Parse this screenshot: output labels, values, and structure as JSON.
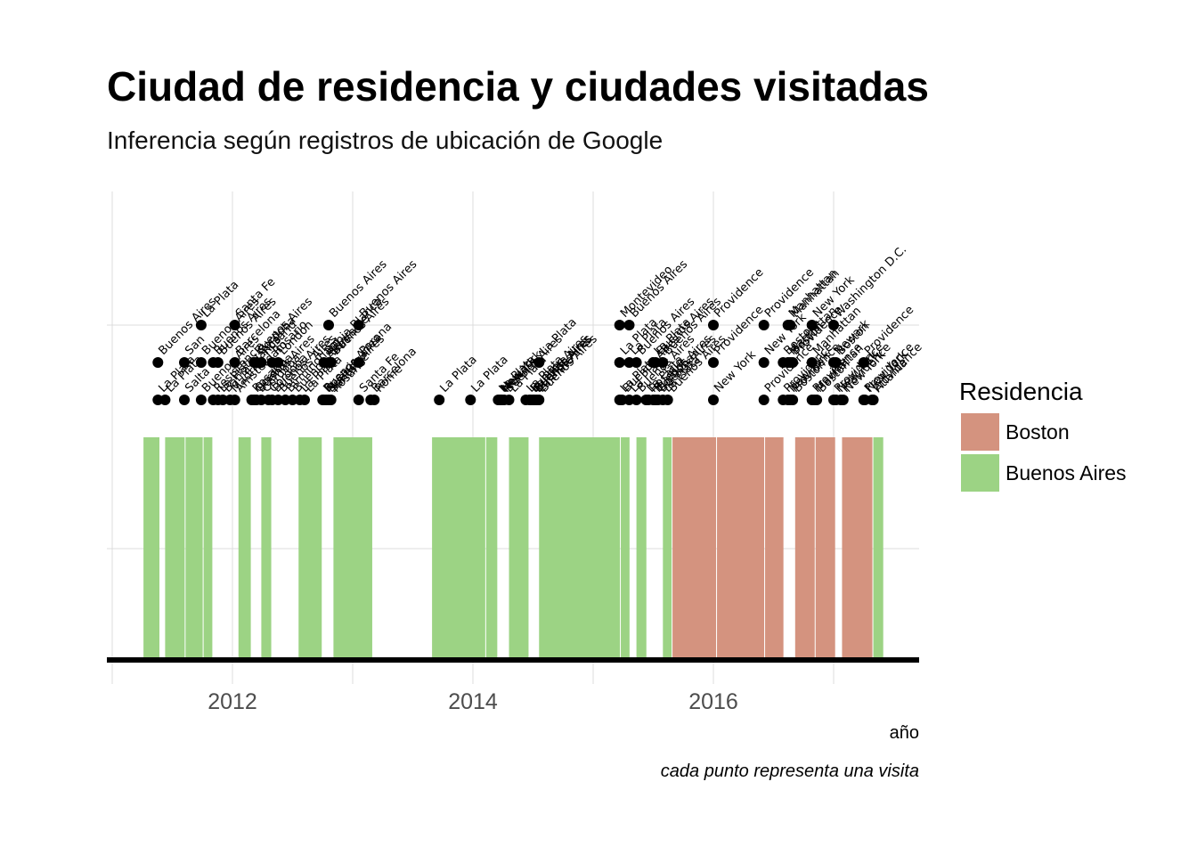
{
  "chart_data": {
    "type": "timeline",
    "title": "Ciudad de residencia y ciudades visitadas",
    "subtitle": "Inferencia según registros de ubicación de Google",
    "xlabel": "año",
    "caption": "cada punto representa una visita",
    "xlim": [
      2011.0,
      2016.7
    ],
    "x_ticks": [
      2012,
      2014,
      2016
    ],
    "grid": true,
    "legend": {
      "title": "Residencia",
      "placement": "right",
      "items": [
        {
          "name": "Boston",
          "color": "#d4937f"
        },
        {
          "name": "Buenos Aires",
          "color": "#9cd384"
        }
      ]
    },
    "residence": [
      {
        "start": 2011.26,
        "end": 2011.4,
        "city": "Buenos Aires"
      },
      {
        "start": 2011.44,
        "end": 2011.61,
        "city": "Buenos Aires"
      },
      {
        "start": 2011.61,
        "end": 2011.76,
        "city": "Buenos Aires"
      },
      {
        "start": 2011.76,
        "end": 2011.84,
        "city": "Buenos Aires"
      },
      {
        "start": 2012.05,
        "end": 2012.16,
        "city": "Buenos Aires"
      },
      {
        "start": 2012.24,
        "end": 2012.33,
        "city": "Buenos Aires"
      },
      {
        "start": 2012.55,
        "end": 2012.75,
        "city": "Buenos Aires"
      },
      {
        "start": 2012.84,
        "end": 2013.17,
        "city": "Buenos Aires"
      },
      {
        "start": 2013.66,
        "end": 2014.11,
        "city": "Buenos Aires"
      },
      {
        "start": 2014.11,
        "end": 2014.21,
        "city": "Buenos Aires"
      },
      {
        "start": 2014.3,
        "end": 2014.47,
        "city": "Buenos Aires"
      },
      {
        "start": 2014.55,
        "end": 2015.23,
        "city": "Buenos Aires"
      },
      {
        "start": 2015.23,
        "end": 2015.31,
        "city": "Buenos Aires"
      },
      {
        "start": 2015.36,
        "end": 2015.45,
        "city": "Buenos Aires"
      },
      {
        "start": 2015.58,
        "end": 2015.66,
        "city": "Buenos Aires"
      },
      {
        "start": 2015.66,
        "end": 2016.03,
        "city": "Boston"
      },
      {
        "start": 2016.03,
        "end": 2016.43,
        "city": "Boston"
      },
      {
        "start": 2016.43,
        "end": 2016.59,
        "city": "Boston"
      },
      {
        "start": 2016.68,
        "end": 2016.85,
        "city": "Boston"
      },
      {
        "start": 2016.85,
        "end": 2017.02,
        "city": "Boston"
      },
      {
        "start": 2017.07,
        "end": 2017.33,
        "city": "Boston"
      },
      {
        "start": 2017.33,
        "end": 2017.42,
        "city": "Buenos Aires"
      }
    ],
    "visits": [
      {
        "x": 2011.38,
        "city": "La Plata"
      },
      {
        "x": 2011.38,
        "city": "Buenos Aires"
      },
      {
        "x": 2011.44,
        "city": "La Plata"
      },
      {
        "x": 2011.6,
        "city": "Salta"
      },
      {
        "x": 2011.6,
        "city": "San"
      },
      {
        "x": 2011.74,
        "city": "Buenos Aires"
      },
      {
        "x": 2011.74,
        "city": "Buenos Aires"
      },
      {
        "x": 2011.74,
        "city": "La Plata"
      },
      {
        "x": 2011.84,
        "city": "Resistencia"
      },
      {
        "x": 2011.84,
        "city": "Buenos Aires"
      },
      {
        "x": 2011.88,
        "city": "La Plata"
      },
      {
        "x": 2011.88,
        "city": "Buenos Aires"
      },
      {
        "x": 2011.92,
        "city": "Bahia Blanca"
      },
      {
        "x": 2011.98,
        "city": "Madrid"
      },
      {
        "x": 2012.02,
        "city": "Amsterdam"
      },
      {
        "x": 2012.02,
        "city": "Barcelona"
      },
      {
        "x": 2012.02,
        "city": "Santa Fe"
      },
      {
        "x": 2012.16,
        "city": "Rosario"
      },
      {
        "x": 2012.18,
        "city": "Cordoba"
      },
      {
        "x": 2012.18,
        "city": "Buenos Aires"
      },
      {
        "x": 2012.2,
        "city": "Buenos Aires"
      },
      {
        "x": 2012.2,
        "city": "Cordoba"
      },
      {
        "x": 2012.24,
        "city": "Cordoba"
      },
      {
        "x": 2012.24,
        "city": "Rosario"
      },
      {
        "x": 2012.3,
        "city": "Cordoba"
      },
      {
        "x": 2012.33,
        "city": "Buenos Aires"
      },
      {
        "x": 2012.33,
        "city": "Rosario"
      },
      {
        "x": 2012.38,
        "city": "Buenos Aires"
      },
      {
        "x": 2012.38,
        "city": "London"
      },
      {
        "x": 2012.44,
        "city": "Birmingham"
      },
      {
        "x": 2012.5,
        "city": "Buenos Aires"
      },
      {
        "x": 2012.56,
        "city": "La Plata"
      },
      {
        "x": 2012.6,
        "city": "La Plata"
      },
      {
        "x": 2012.75,
        "city": "Buenos Aires"
      },
      {
        "x": 2012.76,
        "city": "Rosario"
      },
      {
        "x": 2012.76,
        "city": "Bahia Blanca"
      },
      {
        "x": 2012.78,
        "city": "Buenos Aires"
      },
      {
        "x": 2012.8,
        "city": "Santa Fe"
      },
      {
        "x": 2012.8,
        "city": "Santa Fe"
      },
      {
        "x": 2012.8,
        "city": "Buenos Aires"
      },
      {
        "x": 2012.82,
        "city": "Rosario"
      },
      {
        "x": 2012.82,
        "city": "Buenos Aires"
      },
      {
        "x": 2013.05,
        "city": "Santa Fe"
      },
      {
        "x": 2013.05,
        "city": "Parana"
      },
      {
        "x": 2013.05,
        "city": "Buenos Aires"
      },
      {
        "x": 2013.15,
        "city": "Barcelona"
      },
      {
        "x": 2013.18,
        "city": "Rome"
      },
      {
        "x": 2013.72,
        "city": "La Plata"
      },
      {
        "x": 2013.98,
        "city": "La Plata"
      },
      {
        "x": 2014.21,
        "city": "La Plata"
      },
      {
        "x": 2014.22,
        "city": "New York"
      },
      {
        "x": 2014.23,
        "city": "Newark"
      },
      {
        "x": 2014.24,
        "city": "New"
      },
      {
        "x": 2014.26,
        "city": "Buenos Aires"
      },
      {
        "x": 2014.3,
        "city": "La Plata"
      },
      {
        "x": 2014.44,
        "city": "La Plata"
      },
      {
        "x": 2014.47,
        "city": "Buenos Aires"
      },
      {
        "x": 2014.48,
        "city": "La Plata"
      },
      {
        "x": 2014.5,
        "city": "Buenos Aires"
      },
      {
        "x": 2014.51,
        "city": "Buenos Aires"
      },
      {
        "x": 2014.53,
        "city": "La Plata"
      },
      {
        "x": 2014.55,
        "city": "Buenos Aires"
      },
      {
        "x": 2014.55,
        "city": "La Plata"
      },
      {
        "x": 2015.22,
        "city": "La Plata"
      },
      {
        "x": 2015.22,
        "city": "La Plata"
      },
      {
        "x": 2015.22,
        "city": "Montevideo"
      },
      {
        "x": 2015.24,
        "city": "Buenos Aires"
      },
      {
        "x": 2015.3,
        "city": "La Plata"
      },
      {
        "x": 2015.3,
        "city": "La Plata"
      },
      {
        "x": 2015.3,
        "city": "Buenos Aires"
      },
      {
        "x": 2015.36,
        "city": "Buenos Aires"
      },
      {
        "x": 2015.36,
        "city": "Buenos Aires"
      },
      {
        "x": 2015.44,
        "city": "La Plata"
      },
      {
        "x": 2015.46,
        "city": "Rosario"
      },
      {
        "x": 2015.5,
        "city": "Buenos Aires"
      },
      {
        "x": 2015.5,
        "city": "La Plata"
      },
      {
        "x": 2015.52,
        "city": "Cordoba"
      },
      {
        "x": 2015.52,
        "city": "Buenos Aires"
      },
      {
        "x": 2015.54,
        "city": "Buenos Aires"
      },
      {
        "x": 2015.58,
        "city": "La Plata"
      },
      {
        "x": 2015.58,
        "city": "Buenos Aires"
      },
      {
        "x": 2015.62,
        "city": "Buenos Aires"
      },
      {
        "x": 2016.0,
        "city": "New York"
      },
      {
        "x": 2016.0,
        "city": "Providence"
      },
      {
        "x": 2016.0,
        "city": "Providence"
      },
      {
        "x": 2016.42,
        "city": "Providence"
      },
      {
        "x": 2016.42,
        "city": "New York"
      },
      {
        "x": 2016.42,
        "city": "Providence"
      },
      {
        "x": 2016.58,
        "city": "Providence"
      },
      {
        "x": 2016.58,
        "city": "Boston"
      },
      {
        "x": 2016.62,
        "city": "New York"
      },
      {
        "x": 2016.62,
        "city": "Manhattan"
      },
      {
        "x": 2016.62,
        "city": "Manhattan"
      },
      {
        "x": 2016.64,
        "city": "Providence"
      },
      {
        "x": 2016.64,
        "city": "Boston"
      },
      {
        "x": 2016.64,
        "city": "Manhattan"
      },
      {
        "x": 2016.66,
        "city": "Boston"
      },
      {
        "x": 2016.66,
        "city": "Providence"
      },
      {
        "x": 2016.82,
        "city": "Providence"
      },
      {
        "x": 2016.82,
        "city": "Manhattan"
      },
      {
        "x": 2016.82,
        "city": "New York"
      },
      {
        "x": 2016.84,
        "city": "Manhattan"
      },
      {
        "x": 2016.86,
        "city": "Boston"
      },
      {
        "x": 2017.0,
        "city": "Providence"
      },
      {
        "x": 2017.0,
        "city": "Newark"
      },
      {
        "x": 2017.0,
        "city": "Washington D.C."
      },
      {
        "x": 2017.02,
        "city": "New York"
      },
      {
        "x": 2017.02,
        "city": "Boston"
      },
      {
        "x": 2017.06,
        "city": "Providence"
      },
      {
        "x": 2017.08,
        "city": "New York"
      },
      {
        "x": 2017.25,
        "city": "Providence"
      },
      {
        "x": 2017.25,
        "city": "Providence"
      },
      {
        "x": 2017.26,
        "city": "New York"
      },
      {
        "x": 2017.32,
        "city": "Providence"
      },
      {
        "x": 2017.33,
        "city": "Atlanta"
      }
    ]
  }
}
